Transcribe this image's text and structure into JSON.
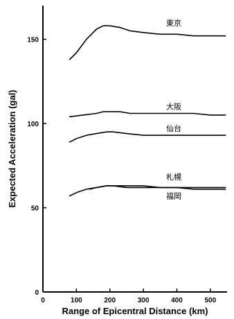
{
  "chart_data": {
    "type": "line",
    "xlabel": "Range of Epicentral Distance (km)",
    "ylabel": "Expected Acceleration (gal)",
    "xlim": [
      0,
      550
    ],
    "ylim": [
      0,
      170
    ],
    "x_ticks": [
      0,
      100,
      200,
      300,
      400,
      500
    ],
    "y_ticks": [
      0,
      50,
      100,
      150
    ],
    "grid": false,
    "series": [
      {
        "name": "東京",
        "x": [
          80,
          100,
          130,
          160,
          180,
          200,
          230,
          260,
          300,
          350,
          400,
          450,
          500,
          545
        ],
        "y": [
          138,
          142,
          150,
          156,
          158,
          158,
          157,
          155,
          154,
          153,
          153,
          152,
          152,
          152
        ]
      },
      {
        "name": "大阪",
        "x": [
          80,
          120,
          160,
          180,
          200,
          230,
          260,
          300,
          350,
          400,
          450,
          500,
          545
        ],
        "y": [
          104,
          105,
          106,
          107,
          107,
          107,
          106,
          106,
          106,
          106,
          106,
          105,
          105
        ]
      },
      {
        "name": "仙台",
        "x": [
          80,
          100,
          130,
          160,
          190,
          210,
          250,
          300,
          350,
          400,
          450,
          500,
          545
        ],
        "y": [
          89,
          91,
          93,
          94,
          95,
          95,
          94,
          93,
          93,
          93,
          93,
          93,
          93
        ]
      },
      {
        "name": "札幌",
        "x": [
          80,
          100,
          130,
          160,
          190,
          210,
          250,
          300,
          350,
          400,
          450,
          500,
          545
        ],
        "y": [
          57,
          59,
          61,
          62,
          63,
          63,
          63,
          63,
          62,
          62,
          62,
          62,
          62
        ]
      },
      {
        "name": "福岡",
        "x": [
          140,
          160,
          190,
          210,
          250,
          300,
          350,
          400,
          450,
          500,
          545
        ],
        "y": [
          61,
          62,
          63,
          63,
          62,
          62,
          62,
          62,
          61,
          61,
          61
        ]
      }
    ]
  }
}
